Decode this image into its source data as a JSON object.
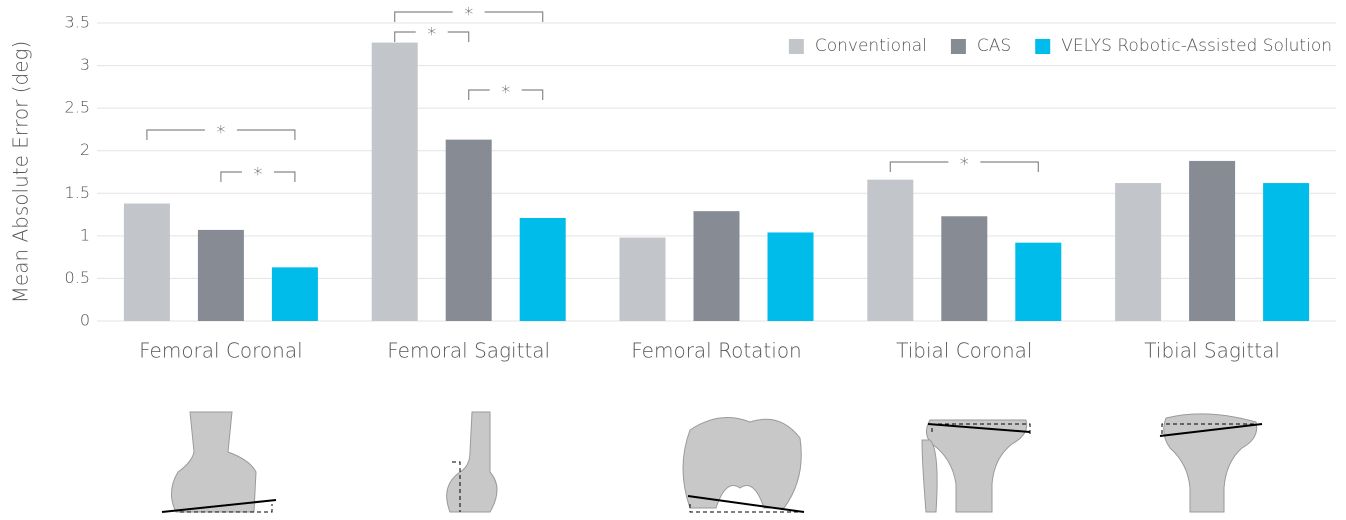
{
  "chart_data": {
    "type": "bar",
    "y_label": "Mean Absolute Error (deg)",
    "categories": [
      "Femoral Coronal",
      "Femoral Sagittal",
      "Femoral Rotation",
      "Tibial Coronal",
      "Tibial Sagittal"
    ],
    "series": [
      {
        "name": "Conventional",
        "color": "#c2c5ca",
        "values": [
          1.38,
          3.27,
          0.98,
          1.66,
          1.62
        ]
      },
      {
        "name": "CAS",
        "color": "#878b93",
        "values": [
          1.07,
          2.13,
          1.29,
          1.23,
          1.88
        ]
      },
      {
        "name": "VELYS Robotic-Assisted Solution",
        "color": "#00bceb",
        "values": [
          0.63,
          1.21,
          1.04,
          0.92,
          1.62
        ]
      }
    ],
    "ylim": [
      0,
      3.5
    ],
    "yticks": [
      0,
      0.5,
      1,
      1.5,
      2,
      2.5,
      3,
      3.5
    ],
    "grid": true,
    "legend": "top-right",
    "significance": [
      {
        "category": "Femoral Coronal",
        "between": [
          "Conventional",
          "VELYS Robotic-Assisted Solution"
        ],
        "label": "*"
      },
      {
        "category": "Femoral Coronal",
        "between": [
          "CAS",
          "VELYS Robotic-Assisted Solution"
        ],
        "label": "*"
      },
      {
        "category": "Femoral Sagittal",
        "between": [
          "Conventional",
          "VELYS Robotic-Assisted Solution"
        ],
        "label": "*"
      },
      {
        "category": "Femoral Sagittal",
        "between": [
          "Conventional",
          "CAS"
        ],
        "label": "*"
      },
      {
        "category": "Femoral Sagittal",
        "between": [
          "CAS",
          "VELYS Robotic-Assisted Solution"
        ],
        "label": "*"
      },
      {
        "category": "Tibial Coronal",
        "between": [
          "Conventional",
          "VELYS Robotic-Assisted Solution"
        ],
        "label": "*"
      }
    ]
  }
}
